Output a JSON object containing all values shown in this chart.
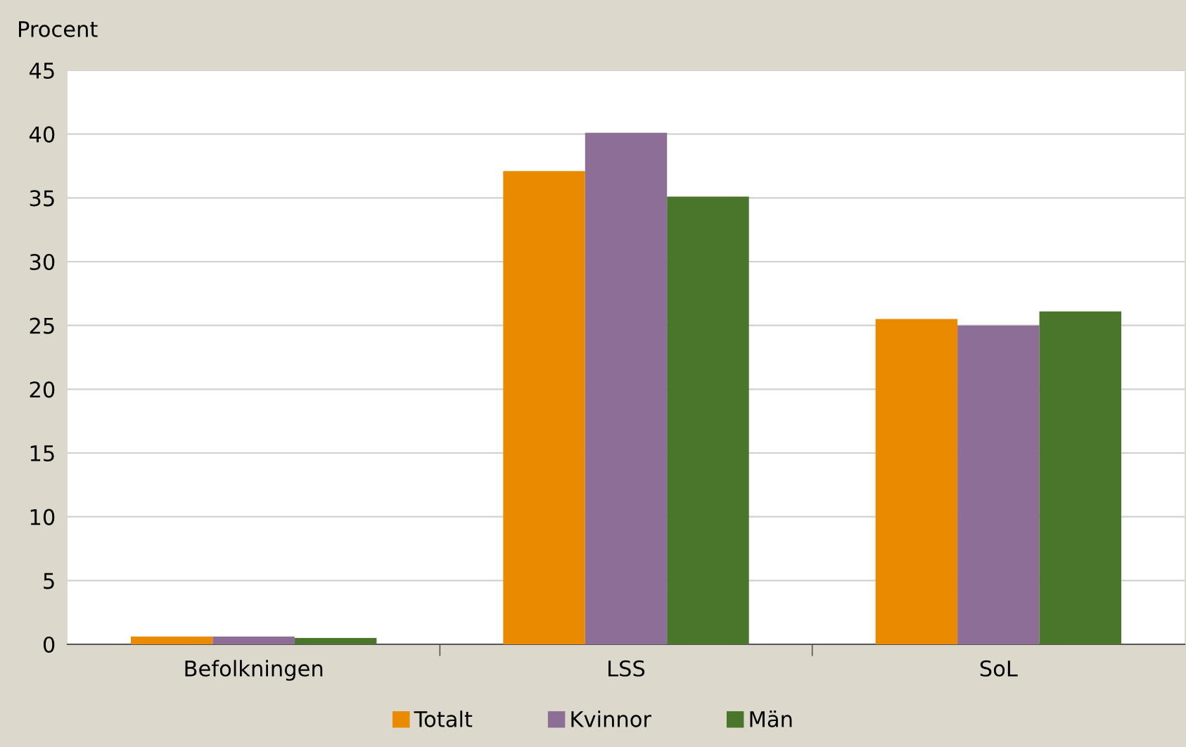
{
  "chart_data": {
    "type": "bar",
    "ylabel": "Procent",
    "categories": [
      "Befolkningen",
      "LSS",
      "SoL"
    ],
    "series": [
      {
        "name": "Totalt",
        "color": "#e98a00",
        "values": [
          0.6,
          37.1,
          25.5
        ]
      },
      {
        "name": "Kvinnor",
        "color": "#8c6e96",
        "values": [
          0.6,
          40.1,
          25.0
        ]
      },
      {
        "name": "Män",
        "color": "#4a762b",
        "values": [
          0.5,
          35.1,
          26.1
        ]
      }
    ],
    "ylim": [
      0,
      45
    ],
    "yticks": [
      0,
      5,
      10,
      15,
      20,
      25,
      30,
      35,
      40,
      45
    ],
    "grid": "y",
    "legend": "bottom"
  }
}
